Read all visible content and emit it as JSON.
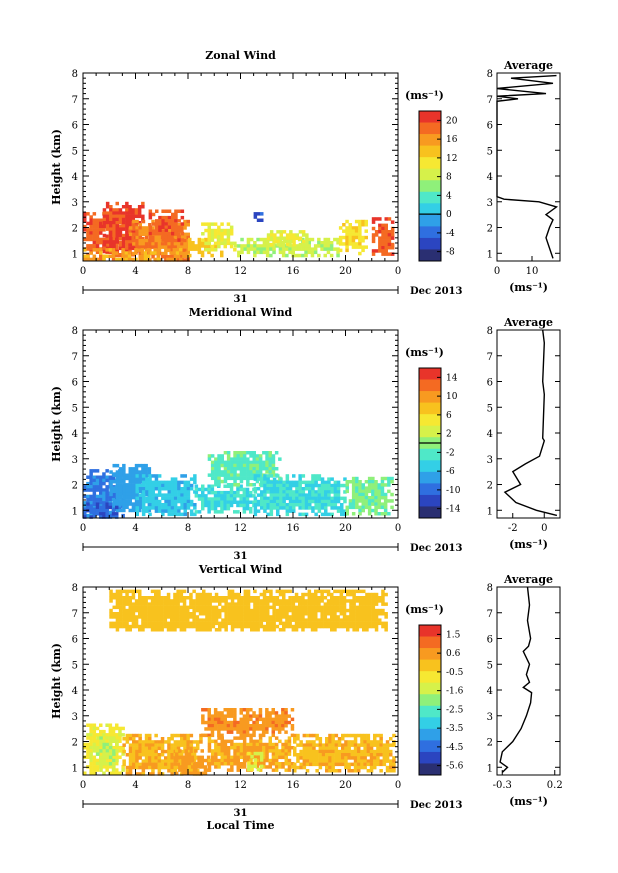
{
  "colors": {
    "scale": [
      "#2a2f72",
      "#2b45c0",
      "#2f6fe0",
      "#2fa0e8",
      "#33cfe6",
      "#4fe8c8",
      "#8ff07a",
      "#d6f14a",
      "#f6e832",
      "#f8c21e",
      "#f89a20",
      "#f46a22",
      "#e8342a"
    ],
    "line": "#000000"
  },
  "chart_data": [
    {
      "type": "heatmap",
      "title": "Zonal Wind",
      "ylabel": "Height (km)",
      "ylim": [
        0.7,
        8
      ],
      "y_ticks": [
        "1",
        "2",
        "3",
        "4",
        "5",
        "6",
        "7",
        "8"
      ],
      "x_ticks": [
        "0",
        "4",
        "8",
        "12",
        "16",
        "20",
        "0"
      ],
      "date_day": "31",
      "date_label": "Dec 2013",
      "colorbar": {
        "unit": "(ms⁻¹)",
        "ticks": [
          "20",
          "16",
          "12",
          "8",
          "4",
          "0",
          "-4",
          "-8"
        ],
        "range": [
          -10,
          22
        ],
        "zero_line": 0
      },
      "data_patches": [
        {
          "x": [
            0,
            3
          ],
          "y": [
            0.8,
            2.6
          ],
          "value": 20
        },
        {
          "x": [
            1.5,
            4.5
          ],
          "y": [
            1.0,
            3.0
          ],
          "value": 21
        },
        {
          "x": [
            3.5,
            8
          ],
          "y": [
            0.8,
            2.3
          ],
          "value": 18
        },
        {
          "x": [
            5,
            7.5
          ],
          "y": [
            1.5,
            2.7
          ],
          "value": 20
        },
        {
          "x": [
            0,
            8
          ],
          "y": [
            0.8,
            1.2
          ],
          "value": 16
        },
        {
          "x": [
            8,
            10.5
          ],
          "y": [
            0.9,
            1.6
          ],
          "value": 14
        },
        {
          "x": [
            9,
            11.5
          ],
          "y": [
            1.2,
            2.2
          ],
          "value": 10
        },
        {
          "x": [
            11.5,
            19.5
          ],
          "y": [
            0.9,
            1.6
          ],
          "value": 8
        },
        {
          "x": [
            14,
            17
          ],
          "y": [
            1.3,
            1.9
          ],
          "value": 10
        },
        {
          "x": [
            19.5,
            21.5
          ],
          "y": [
            1.0,
            2.3
          ],
          "value": 12
        },
        {
          "x": [
            22,
            23.6
          ],
          "y": [
            1.0,
            2.4
          ],
          "value": 20
        },
        {
          "x": [
            13,
            13.5
          ],
          "y": [
            2.3,
            2.6
          ],
          "value": -6
        }
      ],
      "average_profile": {
        "title": "Average",
        "xlabel": "(ms⁻¹)",
        "x_ticks": [
          0,
          10
        ],
        "xlim": [
          0,
          18
        ],
        "points": [
          [
            16,
            0.8
          ],
          [
            15,
            1.2
          ],
          [
            14,
            1.6
          ],
          [
            15,
            2.0
          ],
          [
            16,
            2.3
          ],
          [
            14,
            2.5
          ],
          [
            17,
            2.8
          ],
          [
            12,
            3.0
          ],
          [
            2,
            3.1
          ],
          [
            0,
            3.2
          ],
          [
            0,
            6.9
          ],
          [
            6,
            7.0
          ],
          [
            0,
            7.1
          ],
          [
            14,
            7.2
          ],
          [
            0,
            7.4
          ],
          [
            16,
            7.6
          ],
          [
            4,
            7.8
          ],
          [
            17,
            7.9
          ]
        ]
      }
    },
    {
      "type": "heatmap",
      "title": "Meridional Wind",
      "ylabel": "Height (km)",
      "ylim": [
        0.7,
        8
      ],
      "y_ticks": [
        "1",
        "2",
        "3",
        "4",
        "5",
        "6",
        "7",
        "8"
      ],
      "x_ticks": [
        "0",
        "4",
        "8",
        "12",
        "16",
        "20",
        "0"
      ],
      "date_day": "31",
      "date_label": "Dec 2013",
      "colorbar": {
        "unit": "(ms⁻¹)",
        "ticks": [
          "14",
          "10",
          "6",
          "2",
          "-2",
          "-6",
          "-10",
          "-14"
        ],
        "range": [
          -16,
          16
        ],
        "zero_line": 0
      },
      "data_patches": [
        {
          "x": [
            0,
            3
          ],
          "y": [
            0.8,
            2.6
          ],
          "value": -10
        },
        {
          "x": [
            2,
            5
          ],
          "y": [
            1.0,
            2.8
          ],
          "value": -8
        },
        {
          "x": [
            4,
            8.5
          ],
          "y": [
            0.9,
            2.4
          ],
          "value": -6
        },
        {
          "x": [
            8.5,
            13
          ],
          "y": [
            0.9,
            2.0
          ],
          "value": -4
        },
        {
          "x": [
            9.5,
            15
          ],
          "y": [
            2.0,
            3.3
          ],
          "value": -2
        },
        {
          "x": [
            13,
            20
          ],
          "y": [
            0.9,
            2.4
          ],
          "value": -4
        },
        {
          "x": [
            20,
            23.6
          ],
          "y": [
            0.9,
            2.3
          ],
          "value": -1
        },
        {
          "x": [
            0,
            2.5
          ],
          "y": [
            0.8,
            1.3
          ],
          "value": -12
        }
      ],
      "average_profile": {
        "title": "Average",
        "xlabel": "(ms⁻¹)",
        "x_ticks": [
          -2,
          0
        ],
        "xlim": [
          -3,
          1
        ],
        "points": [
          [
            0.8,
            0.8
          ],
          [
            -0.5,
            1.0
          ],
          [
            -1.8,
            1.3
          ],
          [
            -2.5,
            1.7
          ],
          [
            -1.5,
            2.0
          ],
          [
            -2.0,
            2.5
          ],
          [
            -1.2,
            2.8
          ],
          [
            -0.3,
            3.1
          ],
          [
            0.0,
            3.7
          ],
          [
            -0.1,
            3.8
          ],
          [
            0.0,
            5.5
          ],
          [
            -0.1,
            6.0
          ],
          [
            0.0,
            7.5
          ],
          [
            -0.1,
            8.0
          ]
        ]
      }
    },
    {
      "type": "heatmap",
      "title": "Vertical Wind",
      "ylabel": "Height (km)",
      "xlabel": "Local Time",
      "ylim": [
        0.7,
        8
      ],
      "y_ticks": [
        "1",
        "2",
        "3",
        "4",
        "5",
        "6",
        "7",
        "8"
      ],
      "x_ticks": [
        "0",
        "4",
        "8",
        "12",
        "16",
        "20",
        "0"
      ],
      "date_day": "31",
      "date_label": "Dec 2013",
      "colorbar": {
        "unit": "(ms⁻¹)",
        "ticks": [
          "1.5",
          "0.6",
          "-0.5",
          "-1.6",
          "-2.5",
          "-3.5",
          "-4.5",
          "-5.6"
        ],
        "range": [
          -6,
          2
        ],
        "zero_line": null
      },
      "data_patches": [
        {
          "x": [
            0,
            3
          ],
          "y": [
            0.8,
            2.7
          ],
          "value": -0.8
        },
        {
          "x": [
            1,
            2.5
          ],
          "y": [
            0.9,
            2.2
          ],
          "value": -1.5
        },
        {
          "x": [
            3,
            9
          ],
          "y": [
            0.8,
            2.3
          ],
          "value": 0.3
        },
        {
          "x": [
            7,
            9.5
          ],
          "y": [
            0.8,
            1.7
          ],
          "value": 0.6
        },
        {
          "x": [
            9,
            16
          ],
          "y": [
            2.2,
            3.3
          ],
          "value": 0.8
        },
        {
          "x": [
            9.5,
            16
          ],
          "y": [
            0.9,
            2.2
          ],
          "value": 0.4
        },
        {
          "x": [
            12.5,
            13.5
          ],
          "y": [
            0.9,
            1.6
          ],
          "value": -1.2
        },
        {
          "x": [
            16,
            23.6
          ],
          "y": [
            0.9,
            2.3
          ],
          "value": 0.2
        },
        {
          "x": [
            2,
            23
          ],
          "y": [
            6.3,
            7.9
          ],
          "value": 0.0
        }
      ],
      "average_profile": {
        "title": "Average",
        "xlabel": "(ms⁻¹)",
        "x_ticks": [
          -0.3,
          0.2
        ],
        "xlim": [
          -0.35,
          0.25
        ],
        "points": [
          [
            -0.3,
            0.8
          ],
          [
            -0.25,
            1.0
          ],
          [
            -0.32,
            1.2
          ],
          [
            -0.3,
            1.6
          ],
          [
            -0.2,
            2.0
          ],
          [
            -0.12,
            2.5
          ],
          [
            -0.07,
            3.0
          ],
          [
            -0.03,
            3.5
          ],
          [
            -0.02,
            3.9
          ],
          [
            -0.1,
            4.1
          ],
          [
            -0.04,
            4.3
          ],
          [
            -0.07,
            4.6
          ],
          [
            -0.04,
            5.0
          ],
          [
            -0.1,
            5.5
          ],
          [
            -0.05,
            5.7
          ],
          [
            -0.03,
            6.0
          ],
          [
            -0.06,
            6.7
          ],
          [
            -0.04,
            7.3
          ],
          [
            -0.06,
            8.0
          ]
        ]
      }
    }
  ]
}
